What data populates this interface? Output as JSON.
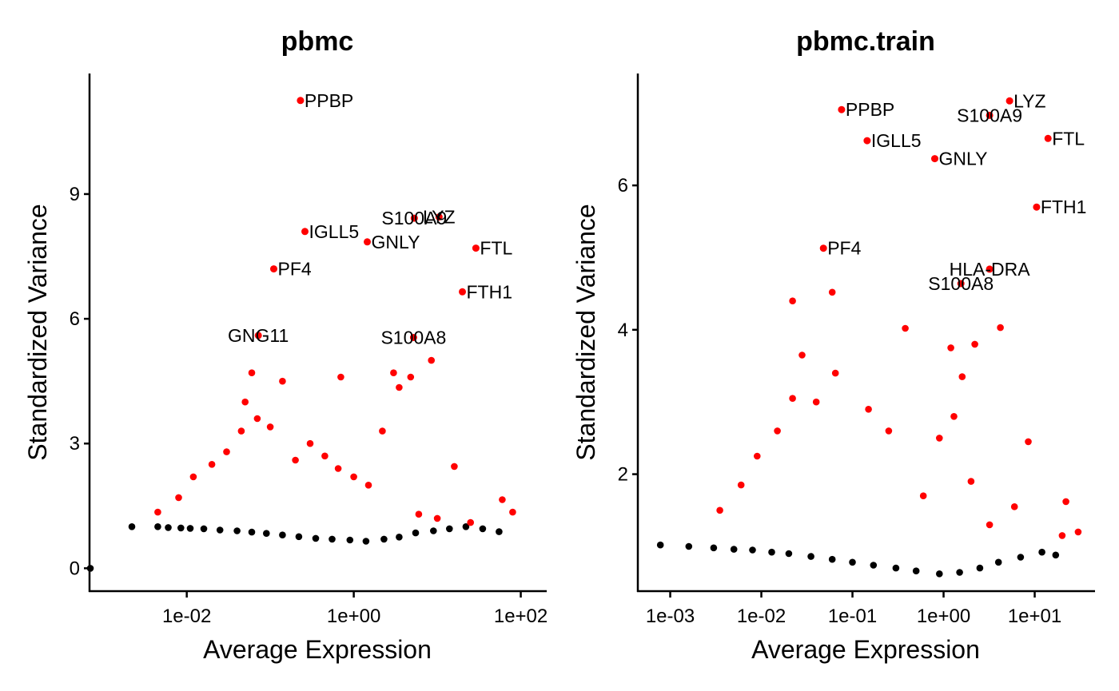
{
  "chart_data": [
    {
      "type": "scatter",
      "title": "pbmc",
      "xlabel": "Average Expression",
      "ylabel": "Standardized Variance",
      "x_scale": "log10",
      "xlim": [
        0.0007,
        200
      ],
      "ylim": [
        -0.55,
        11.9
      ],
      "x_ticks": [
        {
          "value": 0.01,
          "label": "1e-02"
        },
        {
          "value": 1,
          "label": "1e+00"
        },
        {
          "value": 100,
          "label": "1e+02"
        }
      ],
      "y_ticks": [
        {
          "value": 0,
          "label": "0"
        },
        {
          "value": 3,
          "label": "3"
        },
        {
          "value": 6,
          "label": "6"
        },
        {
          "value": 9,
          "label": "9"
        }
      ],
      "series_colors": {
        "variable": "#ff0000",
        "non_variable": "#000000"
      },
      "labeled_points": [
        {
          "label": "PPBP",
          "x": 0.23,
          "y": 11.25,
          "anchor": "start"
        },
        {
          "label": "S100A9",
          "x": 5.3,
          "y": 8.42,
          "anchor": "middle"
        },
        {
          "label": "LYZ",
          "x": 10.5,
          "y": 8.45,
          "anchor": "middle"
        },
        {
          "label": "IGLL5",
          "x": 0.26,
          "y": 8.1,
          "anchor": "start"
        },
        {
          "label": "GNLY",
          "x": 1.45,
          "y": 7.85,
          "anchor": "start"
        },
        {
          "label": "FTL",
          "x": 29,
          "y": 7.7,
          "anchor": "start"
        },
        {
          "label": "PF4",
          "x": 0.11,
          "y": 7.2,
          "anchor": "start"
        },
        {
          "label": "FTH1",
          "x": 20,
          "y": 6.65,
          "anchor": "start"
        },
        {
          "label": "GNG11",
          "x": 0.072,
          "y": 5.6,
          "anchor": "middle"
        },
        {
          "label": "S100A8",
          "x": 5.2,
          "y": 5.55,
          "anchor": "middle"
        }
      ],
      "points": [
        [
          0.0007,
          0.0,
          0
        ],
        [
          0.0022,
          1.0,
          0
        ],
        [
          0.0045,
          1.0,
          0
        ],
        [
          0.006,
          0.98,
          0
        ],
        [
          0.0085,
          0.97,
          0
        ],
        [
          0.011,
          0.96,
          0
        ],
        [
          0.016,
          0.95,
          0
        ],
        [
          0.025,
          0.92,
          0
        ],
        [
          0.04,
          0.9,
          0
        ],
        [
          0.06,
          0.87,
          0
        ],
        [
          0.09,
          0.84,
          0
        ],
        [
          0.14,
          0.8,
          0
        ],
        [
          0.22,
          0.76,
          0
        ],
        [
          0.35,
          0.72,
          0
        ],
        [
          0.55,
          0.7,
          0
        ],
        [
          0.9,
          0.68,
          0
        ],
        [
          1.4,
          0.65,
          0
        ],
        [
          2.3,
          0.7,
          0
        ],
        [
          3.5,
          0.75,
          0
        ],
        [
          5.5,
          0.85,
          0
        ],
        [
          9,
          0.9,
          0
        ],
        [
          14,
          0.95,
          0
        ],
        [
          22,
          1.0,
          0
        ],
        [
          35,
          0.95,
          0
        ],
        [
          55,
          0.88,
          0
        ],
        [
          0.0045,
          1.35,
          1
        ],
        [
          0.008,
          1.7,
          1
        ],
        [
          0.012,
          2.2,
          1
        ],
        [
          0.02,
          2.5,
          1
        ],
        [
          0.03,
          2.8,
          1
        ],
        [
          0.045,
          3.3,
          1
        ],
        [
          0.07,
          3.6,
          1
        ],
        [
          0.1,
          3.4,
          1
        ],
        [
          0.06,
          4.7,
          1
        ],
        [
          0.05,
          4.0,
          1
        ],
        [
          0.14,
          4.5,
          1
        ],
        [
          0.7,
          4.6,
          1
        ],
        [
          0.2,
          2.6,
          1
        ],
        [
          0.3,
          3.0,
          1
        ],
        [
          0.45,
          2.7,
          1
        ],
        [
          0.65,
          2.4,
          1
        ],
        [
          1.0,
          2.2,
          1
        ],
        [
          1.5,
          2.0,
          1
        ],
        [
          2.2,
          3.3,
          1
        ],
        [
          3.0,
          4.7,
          1
        ],
        [
          3.5,
          4.35,
          1
        ],
        [
          4.8,
          4.6,
          1
        ],
        [
          8.5,
          5.0,
          1
        ],
        [
          16,
          2.45,
          1
        ],
        [
          6.0,
          1.3,
          1
        ],
        [
          10,
          1.2,
          1
        ],
        [
          60,
          1.65,
          1
        ],
        [
          80,
          1.35,
          1
        ],
        [
          25,
          1.1,
          1
        ]
      ]
    },
    {
      "type": "scatter",
      "title": "pbmc.train",
      "xlabel": "Average Expression",
      "ylabel": "Standardized Variance",
      "x_scale": "log10",
      "xlim": [
        0.00045,
        45
      ],
      "ylim": [
        0.38,
        7.55
      ],
      "x_ticks": [
        {
          "value": 0.001,
          "label": "1e-03"
        },
        {
          "value": 0.01,
          "label": "1e-02"
        },
        {
          "value": 0.1,
          "label": "1e-01"
        },
        {
          "value": 1,
          "label": "1e+00"
        },
        {
          "value": 10,
          "label": "1e+01"
        }
      ],
      "y_ticks": [
        {
          "value": 2,
          "label": "2"
        },
        {
          "value": 4,
          "label": "4"
        },
        {
          "value": 6,
          "label": "6"
        }
      ],
      "series_colors": {
        "variable": "#ff0000",
        "non_variable": "#000000"
      },
      "labeled_points": [
        {
          "label": "LYZ",
          "x": 5.3,
          "y": 7.17,
          "anchor": "start"
        },
        {
          "label": "PPBP",
          "x": 0.076,
          "y": 7.05,
          "anchor": "start"
        },
        {
          "label": "S100A9",
          "x": 3.2,
          "y": 6.97,
          "anchor": "middle"
        },
        {
          "label": "FTL",
          "x": 14,
          "y": 6.65,
          "anchor": "start"
        },
        {
          "label": "IGLL5",
          "x": 0.145,
          "y": 6.62,
          "anchor": "start"
        },
        {
          "label": "GNLY",
          "x": 0.8,
          "y": 6.37,
          "anchor": "start"
        },
        {
          "label": "FTH1",
          "x": 10.5,
          "y": 5.7,
          "anchor": "start"
        },
        {
          "label": "PF4",
          "x": 0.048,
          "y": 5.13,
          "anchor": "start"
        },
        {
          "label": "HLA-DRA",
          "x": 3.2,
          "y": 4.84,
          "anchor": "middle"
        },
        {
          "label": "S100A8",
          "x": 1.55,
          "y": 4.64,
          "anchor": "middle"
        }
      ],
      "points": [
        [
          0.00078,
          1.02,
          0
        ],
        [
          0.0016,
          1.0,
          0
        ],
        [
          0.003,
          0.98,
          0
        ],
        [
          0.005,
          0.96,
          0
        ],
        [
          0.008,
          0.95,
          0
        ],
        [
          0.013,
          0.92,
          0
        ],
        [
          0.02,
          0.9,
          0
        ],
        [
          0.035,
          0.86,
          0
        ],
        [
          0.06,
          0.82,
          0
        ],
        [
          0.1,
          0.78,
          0
        ],
        [
          0.17,
          0.74,
          0
        ],
        [
          0.3,
          0.7,
          0
        ],
        [
          0.5,
          0.66,
          0
        ],
        [
          0.9,
          0.62,
          0
        ],
        [
          1.5,
          0.64,
          0
        ],
        [
          2.5,
          0.7,
          0
        ],
        [
          4,
          0.78,
          0
        ],
        [
          7,
          0.85,
          0
        ],
        [
          12,
          0.92,
          0
        ],
        [
          17,
          0.88,
          0
        ],
        [
          0.0035,
          1.5,
          1
        ],
        [
          0.006,
          1.85,
          1
        ],
        [
          0.009,
          2.25,
          1
        ],
        [
          0.015,
          2.6,
          1
        ],
        [
          0.022,
          3.05,
          1
        ],
        [
          0.028,
          3.65,
          1
        ],
        [
          0.022,
          4.4,
          1
        ],
        [
          0.06,
          4.52,
          1
        ],
        [
          0.065,
          3.4,
          1
        ],
        [
          0.04,
          3.0,
          1
        ],
        [
          0.15,
          2.9,
          1
        ],
        [
          0.25,
          2.6,
          1
        ],
        [
          0.38,
          4.02,
          1
        ],
        [
          1.2,
          3.75,
          1
        ],
        [
          1.6,
          3.35,
          1
        ],
        [
          2.2,
          3.8,
          1
        ],
        [
          4.2,
          4.03,
          1
        ],
        [
          1.3,
          2.8,
          1
        ],
        [
          0.9,
          2.5,
          1
        ],
        [
          8.5,
          2.45,
          1
        ],
        [
          6,
          1.55,
          1
        ],
        [
          2.0,
          1.9,
          1
        ],
        [
          3.2,
          1.3,
          1
        ],
        [
          22,
          1.62,
          1
        ],
        [
          30,
          1.2,
          1
        ],
        [
          20,
          1.15,
          1
        ],
        [
          0.6,
          1.7,
          1
        ]
      ]
    }
  ]
}
